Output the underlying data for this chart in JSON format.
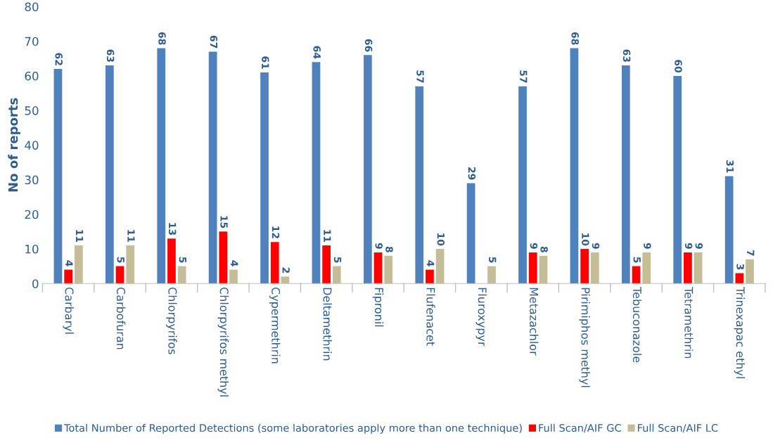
{
  "chart_data": {
    "type": "bar",
    "ylabel": "No of reports",
    "categories": [
      "Carbaryl",
      "Carbofuran",
      "Chlorpyrifos",
      "Chlorpyrifos methyl",
      "Cypermethrin",
      "Deltamethrin",
      "Fipronil",
      "Flufenacet",
      "Fluroxypyr",
      "Metazachlor",
      "Pirimiphos methyl",
      "Tebuconazole",
      "Tetramethrin",
      "Trinexapac ethyl"
    ],
    "series": [
      {
        "name": "Total Number of Reported Detections (some laboratories apply more than one technique)",
        "color": "#4f81bd",
        "values": [
          62,
          63,
          68,
          67,
          61,
          64,
          66,
          57,
          29,
          57,
          68,
          63,
          60,
          31
        ]
      },
      {
        "name": "Full Scan/AIF GC",
        "color": "#ff0000",
        "values": [
          4,
          5,
          13,
          15,
          12,
          11,
          9,
          4,
          null,
          9,
          10,
          5,
          9,
          3
        ]
      },
      {
        "name": "Full Scan/AIF LC",
        "color": "#c4bd97",
        "values": [
          11,
          11,
          5,
          4,
          2,
          5,
          8,
          10,
          5,
          8,
          9,
          9,
          9,
          7
        ]
      }
    ],
    "ylim": [
      0,
      80
    ],
    "yticks": [
      0,
      10,
      20,
      30,
      40,
      50,
      60,
      70,
      80
    ],
    "data_labels": true,
    "legend": "bottom",
    "grid": false
  }
}
